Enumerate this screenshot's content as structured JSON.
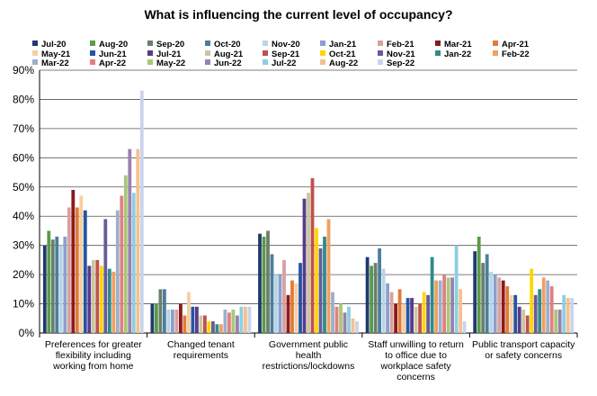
{
  "chart_data": {
    "type": "bar",
    "title": "What is influencing the current level of occupancy?",
    "xlabel": "",
    "ylabel": "",
    "ylim": [
      0,
      90
    ],
    "yticks": [
      "0%",
      "10%",
      "20%",
      "30%",
      "40%",
      "50%",
      "60%",
      "70%",
      "80%",
      "90%"
    ],
    "grid": true,
    "legend_position": "top",
    "categories": [
      [
        "Preferences for greater",
        "flexibility including",
        "working from home"
      ],
      [
        "Changed tenant",
        "requirements"
      ],
      [
        "Government public",
        "health",
        "restrictions/lockdowns"
      ],
      [
        "Staff unwilling to return",
        "to office due to",
        "workplace safety",
        "concerns"
      ],
      [
        "Public transport capacity",
        "or safety concerns"
      ]
    ],
    "series": [
      {
        "name": "Jul-20",
        "color": "#1f3a6e",
        "values": [
          30,
          10,
          34,
          26,
          28
        ]
      },
      {
        "name": "Aug-20",
        "color": "#5a9a4a",
        "values": [
          35,
          10,
          33,
          23,
          33
        ]
      },
      {
        "name": "Sep-20",
        "color": "#6b7f6a",
        "values": [
          32,
          15,
          35,
          24,
          24
        ]
      },
      {
        "name": "Oct-20",
        "color": "#4a7f9c",
        "values": [
          33,
          15,
          27,
          29,
          27
        ]
      },
      {
        "name": "Nov-20",
        "color": "#b8d4e8",
        "values": [
          30,
          8,
          20,
          22,
          21
        ]
      },
      {
        "name": "Jan-21",
        "color": "#8aa0cc",
        "values": [
          33,
          8,
          20,
          17,
          20
        ]
      },
      {
        "name": "Feb-21",
        "color": "#d9a0a0",
        "values": [
          43,
          8,
          25,
          14,
          19
        ]
      },
      {
        "name": "Mar-21",
        "color": "#8b1a1a",
        "values": [
          49,
          10,
          13,
          10,
          18
        ]
      },
      {
        "name": "Apr-21",
        "color": "#e07b39",
        "values": [
          43,
          6,
          18,
          15,
          16
        ]
      },
      {
        "name": "May-21",
        "color": "#f5cfa3",
        "values": [
          47,
          14,
          17,
          10,
          13
        ]
      },
      {
        "name": "Jun-21",
        "color": "#2455a4",
        "values": [
          42,
          9,
          24,
          12,
          13
        ]
      },
      {
        "name": "Jul-21",
        "color": "#5a3a8a",
        "values": [
          23,
          9,
          46,
          12,
          9
        ]
      },
      {
        "name": "Aug-21",
        "color": "#c8c8a0",
        "values": [
          25,
          6,
          48,
          9,
          8
        ]
      },
      {
        "name": "Sep-21",
        "color": "#c0504d",
        "values": [
          25,
          6,
          53,
          10,
          6
        ]
      },
      {
        "name": "Oct-21",
        "color": "#ffd600",
        "values": [
          23,
          4,
          36,
          14,
          22
        ]
      },
      {
        "name": "Nov-21",
        "color": "#6a5a9a",
        "values": [
          39,
          4,
          29,
          13,
          13
        ]
      },
      {
        "name": "Jan-22",
        "color": "#2e8b8b",
        "values": [
          22,
          3,
          33,
          26,
          15
        ]
      },
      {
        "name": "Feb-22",
        "color": "#f0a060",
        "values": [
          21,
          3,
          39,
          18,
          19
        ]
      },
      {
        "name": "Mar-22",
        "color": "#9ab0cc",
        "values": [
          42,
          8,
          14,
          18,
          18
        ]
      },
      {
        "name": "Apr-22",
        "color": "#e08080",
        "values": [
          47,
          7,
          9,
          20,
          16
        ]
      },
      {
        "name": "May-22",
        "color": "#a8c878",
        "values": [
          54,
          8,
          10,
          19,
          8
        ]
      },
      {
        "name": "Jun-22",
        "color": "#9a80b0",
        "values": [
          63,
          6,
          7,
          19,
          8
        ]
      },
      {
        "name": "Jul-22",
        "color": "#8ad0e0",
        "values": [
          48,
          9,
          9,
          30,
          13
        ]
      },
      {
        "name": "Aug-22",
        "color": "#f5c090",
        "values": [
          63,
          9,
          5,
          15,
          12
        ]
      },
      {
        "name": "Sep-22",
        "color": "#c8d4ec",
        "values": [
          83,
          9,
          4,
          4,
          12
        ]
      }
    ]
  }
}
